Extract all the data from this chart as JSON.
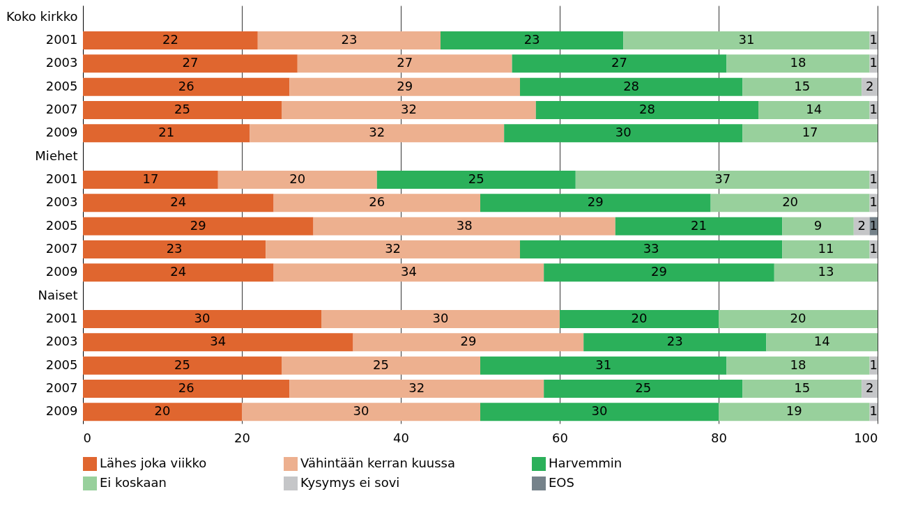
{
  "chart_data": {
    "type": "bar",
    "orientation": "horizontal",
    "stacked": true,
    "data_labels": true,
    "grid": "x",
    "legend": "bottom",
    "categories": [
      "Koko kirkko",
      "2001",
      "2003",
      "2005",
      "2007",
      "2009",
      "Miehet",
      "2001",
      "2003",
      "2005",
      "2007",
      "2009",
      "Naiset",
      "2001",
      "2003",
      "2005",
      "2007",
      "2009"
    ],
    "xlim": [
      0,
      100
    ],
    "xticks": [
      0,
      20,
      40,
      60,
      80,
      100
    ],
    "series": [
      {
        "name": "Lähes joka viikko",
        "color": "#e0662f",
        "values": [
          null,
          22,
          27,
          26,
          25,
          21,
          null,
          17,
          24,
          29,
          23,
          24,
          null,
          30,
          34,
          25,
          26,
          20
        ]
      },
      {
        "name": "Vähintään kerran kuussa",
        "color": "#edb08f",
        "values": [
          null,
          23,
          27,
          29,
          32,
          32,
          null,
          20,
          26,
          38,
          32,
          34,
          null,
          30,
          29,
          25,
          32,
          30
        ]
      },
      {
        "name": "Harvemmin",
        "color": "#2bb05a",
        "values": [
          null,
          23,
          27,
          28,
          28,
          30,
          null,
          25,
          29,
          21,
          33,
          29,
          null,
          20,
          23,
          31,
          25,
          30
        ]
      },
      {
        "name": "Ei koskaan",
        "color": "#98d09c",
        "values": [
          null,
          31,
          18,
          15,
          14,
          17,
          null,
          37,
          20,
          9,
          11,
          13,
          null,
          20,
          14,
          18,
          15,
          19
        ]
      },
      {
        "name": "Kysymys ei sovi",
        "color": "#c5c6c8",
        "values": [
          null,
          1,
          1,
          2,
          1,
          null,
          null,
          1,
          1,
          2,
          1,
          null,
          null,
          null,
          null,
          1,
          2,
          1
        ]
      },
      {
        "name": "EOS",
        "color": "#75828a",
        "values": [
          null,
          null,
          null,
          null,
          null,
          null,
          null,
          null,
          null,
          1,
          null,
          null,
          null,
          null,
          null,
          null,
          null,
          null
        ]
      }
    ]
  }
}
